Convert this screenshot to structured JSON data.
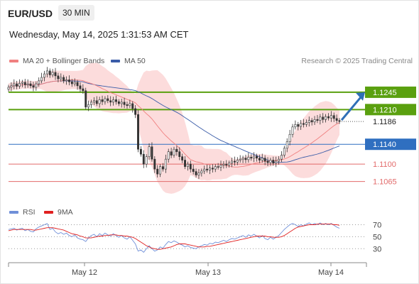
{
  "header": {
    "symbol": "EUR/USD",
    "interval": "30 MIN",
    "datetime": "Wednesday, May 14, 2025 1:31:53 AM CET"
  },
  "legend": {
    "ma20_label": "MA 20 + Bollinger Bands",
    "ma50_label": "MA 50",
    "credit": "Research © 2025 Trading Central"
  },
  "rsi_legend": {
    "rsi_label": "RSI",
    "ma_label": "9MA"
  },
  "colors": {
    "ma20": "#f08080",
    "bollinger_fill": "#fbd3d3",
    "ma50": "#3a5ca8",
    "rsi": "#6f8fd8",
    "rsi_ma": "#e02020",
    "resistance": "#5aa00f",
    "support_blue": "#2f6fc0",
    "support_red": "#e26a6a",
    "candle": "#333333",
    "arrow": "#2f6fb7"
  },
  "chart_data": [
    {
      "type": "candlestick",
      "title": "EUR/USD",
      "interval": "30 MIN",
      "x_ticks": [
        "May 12",
        "May 13",
        "May 14"
      ],
      "y_range": [
        1.102,
        1.1295
      ],
      "price_levels": [
        {
          "value": 1.1245,
          "label": "1.1245",
          "kind": "resistance"
        },
        {
          "value": 1.121,
          "label": "1.1210",
          "kind": "resistance"
        },
        {
          "value": 1.1186,
          "label": "1.1186",
          "kind": "last"
        },
        {
          "value": 1.114,
          "label": "1.1140",
          "kind": "support"
        },
        {
          "value": 1.11,
          "label": "1.1100",
          "kind": "support"
        },
        {
          "value": 1.1065,
          "label": "1.1065",
          "kind": "support"
        }
      ],
      "closes": [
        1.1255,
        1.1258,
        1.1262,
        1.1257,
        1.1263,
        1.1265,
        1.126,
        1.1262,
        1.1258,
        1.1255,
        1.1262,
        1.1268,
        1.1275,
        1.1282,
        1.1288,
        1.128,
        1.1285,
        1.1278,
        1.1272,
        1.1275,
        1.1268,
        1.127,
        1.1266,
        1.1262,
        1.1265,
        1.1258,
        1.1252,
        1.1248,
        1.1215,
        1.122,
        1.1225,
        1.1228,
        1.1222,
        1.123,
        1.1226,
        1.1232,
        1.1228,
        1.1225,
        1.123,
        1.1226,
        1.1222,
        1.1225,
        1.122,
        1.1218,
        1.1222,
        1.1212,
        1.12,
        1.113,
        1.112,
        1.11,
        1.1115,
        1.1135,
        1.111,
        1.109,
        1.108,
        1.1095,
        1.109,
        1.111,
        1.1125,
        1.1118,
        1.113,
        1.1125,
        1.1115,
        1.1108,
        1.1095,
        1.11,
        1.109,
        1.1085,
        1.1078,
        1.1082,
        1.1086,
        1.109,
        1.1088,
        1.1092,
        1.109,
        1.1095,
        1.1094,
        1.1098,
        1.11,
        1.1098,
        1.1102,
        1.1106,
        1.1104,
        1.1108,
        1.111,
        1.1112,
        1.1109,
        1.1114,
        1.1112,
        1.1116,
        1.1112,
        1.1108,
        1.1112,
        1.1106,
        1.1103,
        1.1108,
        1.1102,
        1.1106,
        1.111,
        1.1118,
        1.1132,
        1.1145,
        1.116,
        1.1175,
        1.118,
        1.1176,
        1.1182,
        1.118,
        1.1184,
        1.1188,
        1.1185,
        1.119,
        1.1188,
        1.1195,
        1.119,
        1.1196,
        1.1193,
        1.1198,
        1.1192,
        1.1188,
        1.1186
      ],
      "overlays": [
        "MA 20 + Bollinger Bands",
        "MA 50"
      ],
      "forecast": {
        "from": 1.1186,
        "to": 1.1245,
        "direction": "up"
      }
    },
    {
      "type": "line",
      "title": "RSI",
      "series": [
        {
          "name": "RSI",
          "values": [
            62,
            63,
            64,
            61,
            63,
            64,
            60,
            62,
            59,
            58,
            63,
            66,
            68,
            70,
            72,
            62,
            64,
            58,
            55,
            57,
            54,
            56,
            52,
            50,
            53,
            48,
            46,
            45,
            42,
            48,
            52,
            54,
            50,
            55,
            52,
            56,
            53,
            51,
            55,
            52,
            49,
            52,
            48,
            46,
            50,
            44,
            38,
            26,
            28,
            24,
            30,
            35,
            30,
            26,
            28,
            33,
            31,
            37,
            42,
            40,
            43,
            41,
            38,
            36,
            33,
            35,
            32,
            31,
            30,
            33,
            35,
            37,
            36,
            39,
            38,
            41,
            40,
            42,
            44,
            42,
            45,
            47,
            46,
            48,
            50,
            52,
            49,
            53,
            51,
            54,
            51,
            48,
            52,
            47,
            45,
            49,
            46,
            49,
            52,
            57,
            62,
            66,
            70,
            72,
            70,
            67,
            70,
            68,
            71,
            73,
            70,
            72,
            70,
            73,
            70,
            72,
            70,
            72,
            69,
            66,
            64
          ]
        },
        {
          "name": "9MA",
          "values": [
            60,
            61,
            62,
            62,
            62,
            62,
            62,
            62,
            62,
            61,
            61,
            62,
            63,
            64,
            65,
            65,
            65,
            64,
            63,
            62,
            61,
            59,
            57,
            55,
            54,
            53,
            51,
            50,
            48,
            48,
            48,
            49,
            50,
            51,
            51,
            52,
            52,
            53,
            53,
            53,
            52,
            52,
            51,
            51,
            50,
            49,
            47,
            44,
            41,
            38,
            35,
            33,
            31,
            30,
            29,
            29,
            30,
            31,
            32,
            33,
            35,
            37,
            38,
            38,
            38,
            37,
            36,
            35,
            34,
            33,
            33,
            33,
            34,
            34,
            35,
            36,
            37,
            38,
            39,
            40,
            41,
            42,
            43,
            44,
            45,
            46,
            47,
            48,
            49,
            50,
            51,
            51,
            51,
            51,
            50,
            50,
            49,
            49,
            49,
            50,
            52,
            55,
            58,
            61,
            64,
            66,
            67,
            68,
            69,
            70,
            70,
            70,
            71,
            71,
            71,
            71,
            71,
            71,
            70,
            70,
            69
          ]
        }
      ],
      "y_ticks": [
        70,
        50,
        30
      ],
      "y_range": [
        15,
        80
      ]
    }
  ]
}
